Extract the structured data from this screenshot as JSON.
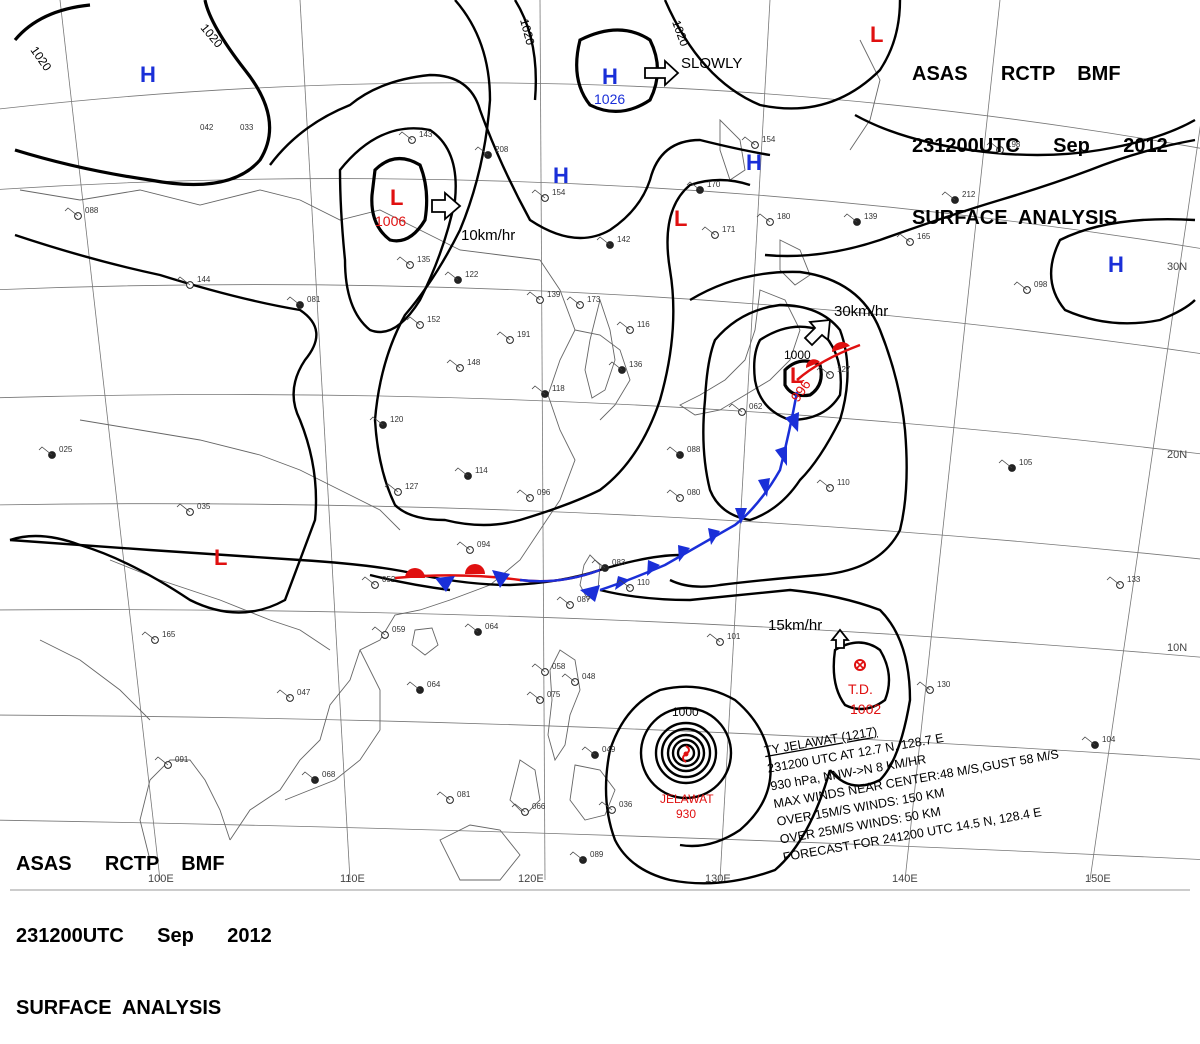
{
  "header": {
    "line1": "ASAS      RCTP    BMF",
    "line2": "231200UTC      Sep      2012",
    "line3": "SURFACE  ANALYSIS"
  },
  "latitude_labels": [
    "30N",
    "20N",
    "10N"
  ],
  "longitude_labels": [
    "100E",
    "110E",
    "120E",
    "130E",
    "140E",
    "150E"
  ],
  "isobar_labels": [
    "1020",
    "1020",
    "1020",
    "1020",
    "1000"
  ],
  "pressure_systems": [
    {
      "type": "H",
      "value": ""
    },
    {
      "type": "H",
      "value": "1026"
    },
    {
      "type": "H",
      "value": ""
    },
    {
      "type": "H",
      "value": ""
    },
    {
      "type": "H",
      "value": ""
    },
    {
      "type": "L",
      "value": "1006"
    },
    {
      "type": "L",
      "value": ""
    },
    {
      "type": "L",
      "value": ""
    },
    {
      "type": "L",
      "value": ""
    },
    {
      "type": "L",
      "value": "996"
    }
  ],
  "low_996_label": "1000",
  "motion_labels": [
    "SLOWLY",
    "10km/hr",
    "30km/hr",
    "15km/hr"
  ],
  "tropical_depression": {
    "label": "T.D.",
    "pressure": "1002"
  },
  "typhoon": {
    "name": "JELAWAT",
    "pressure": "930",
    "isobar_label": "1000",
    "info": [
      "TY  JELAWAT  (1217)",
      "231200 UTC  AT 12.7 N, 128.7 E",
      "930 hPa, NNW->N  8 KM/HR",
      "MAX WINDS NEAR CENTER:48 M/S,GUST 58 M/S",
      "OVER 15M/S WINDS: 150 KM",
      "OVER 25M/S WINDS: 50 KM",
      "FORECAST FOR 241200 UTC 14.5 N, 128.4 E"
    ]
  },
  "station_labels": [
    "114",
    "088",
    "048",
    "122",
    "152",
    "148",
    "120",
    "127",
    "035",
    "025",
    "052",
    "059",
    "064",
    "047",
    "091",
    "068",
    "081",
    "066",
    "089",
    "087",
    "110",
    "083",
    "094",
    "096",
    "118",
    "139",
    "191",
    "142",
    "173",
    "154",
    "208",
    "143",
    "135",
    "081",
    "144",
    "116",
    "136",
    "127",
    "080",
    "088",
    "062",
    "110",
    "105",
    "133",
    "130",
    "104",
    "098",
    "165",
    "139",
    "180",
    "171",
    "170",
    "154",
    "198",
    "212",
    "101",
    "165",
    "064",
    "058",
    "075",
    "049",
    "036",
    "042",
    "033"
  ],
  "colors": {
    "high": "#1a2fd8",
    "low": "#e01010",
    "isobar": "#000000",
    "coast": "#666666"
  }
}
